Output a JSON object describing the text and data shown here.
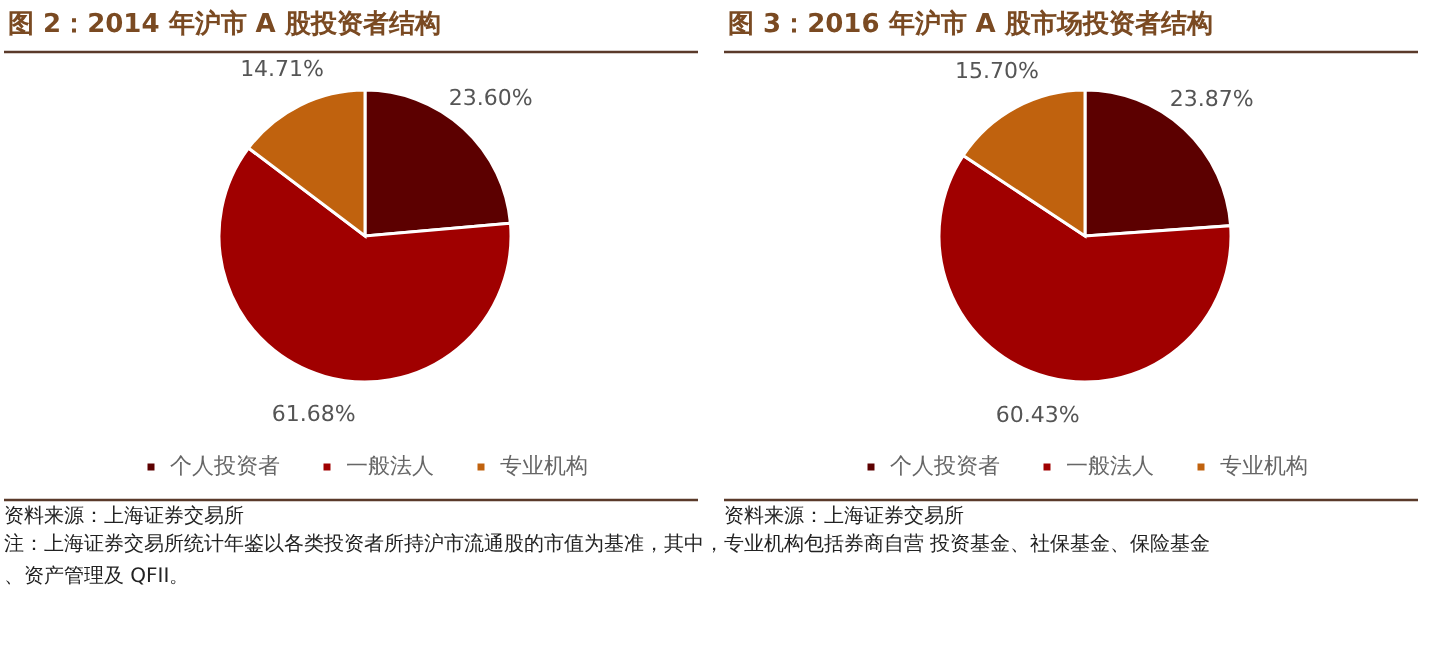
{
  "chart_data": [
    {
      "type": "pie",
      "title": "图 2：2014 年沪市 A 股投资者结构",
      "categories": [
        "个人投资者",
        "一般法人",
        "专业机构"
      ],
      "values": [
        23.6,
        61.68,
        14.71
      ],
      "colors": [
        "#5c0000",
        "#a00000",
        "#c0620e"
      ],
      "value_labels": [
        "23.60%",
        "61.68%",
        "14.71%"
      ],
      "legend": "bottom",
      "annotations": [
        "资料来源：上海证券交易所",
        "注：上海证券交易所统计年鉴以各类投资者所持沪市流通股的市值为基准，其中，专业机构包括券商自营 投资基金、社保基金、保险基金、资产管理及 QFII。"
      ]
    },
    {
      "type": "pie",
      "title": "图 3：2016 年沪市 A 股市场投资者结构",
      "categories": [
        "个人投资者",
        "一般法人",
        "专业机构"
      ],
      "values": [
        23.87,
        60.43,
        15.7
      ],
      "colors": [
        "#5c0000",
        "#a00000",
        "#c0620e"
      ],
      "value_labels": [
        "23.87%",
        "60.43%",
        "15.70%"
      ],
      "legend": "bottom",
      "annotations": [
        "资料来源：上海证券交易所"
      ]
    }
  ]
}
